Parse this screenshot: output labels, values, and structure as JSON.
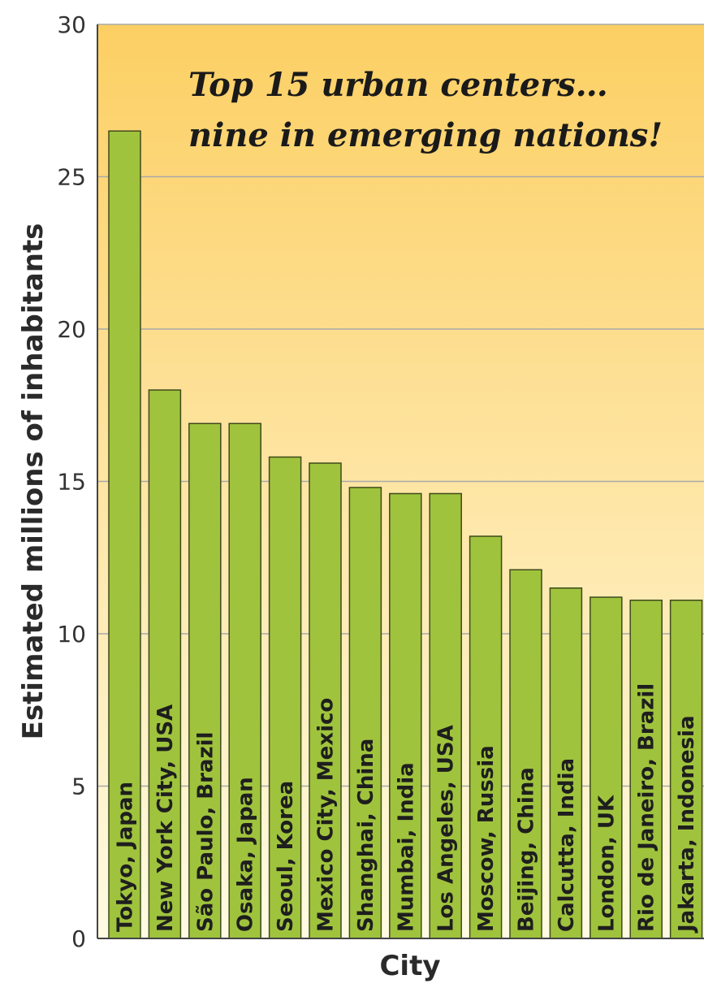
{
  "chart_data": {
    "type": "bar",
    "annotation": [
      "Top 15 urban centers…",
      "nine in emerging nations!"
    ],
    "xlabel": "City",
    "ylabel": "Estimated millions of inhabitants",
    "ylim": [
      0,
      30
    ],
    "yticks": [
      0,
      5,
      10,
      15,
      20,
      25,
      30
    ],
    "grid": true,
    "categories": [
      "Tokyo, Japan",
      "New York City, USA",
      "São Paulo, Brazil",
      "Osaka, Japan",
      "Seoul, Korea",
      "Mexico City, Mexico",
      "Shanghai, China",
      "Mumbai, India",
      "Los Angeles, USA",
      "Moscow, Russia",
      "Beijing, China",
      "Calcutta, India",
      "London, UK",
      "Rio de Janeiro, Brazil",
      "Jakarta, Indonesia"
    ],
    "values": [
      26.5,
      18.0,
      16.9,
      16.9,
      15.8,
      15.6,
      14.8,
      14.6,
      14.6,
      13.2,
      12.1,
      11.5,
      11.2,
      11.1,
      11.1
    ],
    "colors": {
      "bar": "#9fc33d",
      "bar_stroke": "#3f4a1c",
      "background_top": "#fccf63",
      "background_bottom": "#fffbe3",
      "grid": "#a9a9a9",
      "axis": "#444444"
    }
  }
}
